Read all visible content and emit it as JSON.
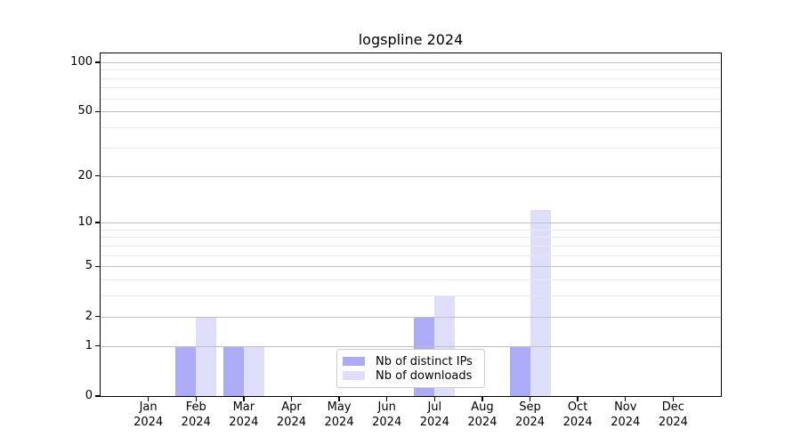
{
  "title": "logspline 2024",
  "chart_data": {
    "type": "bar",
    "title": "logspline 2024",
    "categories": [
      "Jan 2024",
      "Feb 2024",
      "Mar 2024",
      "Apr 2024",
      "May 2024",
      "Jun 2024",
      "Jul 2024",
      "Aug 2024",
      "Sep 2024",
      "Oct 2024",
      "Nov 2024",
      "Dec 2024"
    ],
    "series": [
      {
        "key": "distinct-ips",
        "name": "Nb of distinct IPs",
        "color": "#ababf7",
        "values": [
          0,
          1,
          1,
          0,
          0,
          0,
          2,
          0,
          1,
          0,
          0,
          0
        ]
      },
      {
        "key": "downloads",
        "name": "Nb of downloads",
        "color": "#dedefa",
        "values": [
          0,
          2,
          1,
          0,
          0,
          0,
          3,
          0,
          12,
          0,
          0,
          0
        ]
      }
    ],
    "xlabel": "",
    "ylabel": "",
    "y_scale": "log10(1+y)",
    "ylim": [
      0,
      113
    ],
    "y_tick_values": [
      100,
      50,
      20,
      10,
      5,
      2,
      1,
      0
    ],
    "y_major_gridlines": [
      1,
      2,
      5,
      10,
      20,
      50,
      100
    ],
    "y_minor_gridlines": [
      3,
      4,
      6,
      7,
      8,
      9,
      30,
      40,
      60,
      70,
      80,
      90
    ],
    "grid": true,
    "legend_position": "lower center"
  },
  "colors": {
    "background": "#ffffff",
    "spine": "#000000",
    "major_gridline": "#c0c0c0",
    "minor_gridline": "#eaeaea",
    "distinct_ips_bar": "#ababf7",
    "downloads_bar": "#dedefa",
    "legend_border": "#cccccc",
    "text": "#000000"
  }
}
